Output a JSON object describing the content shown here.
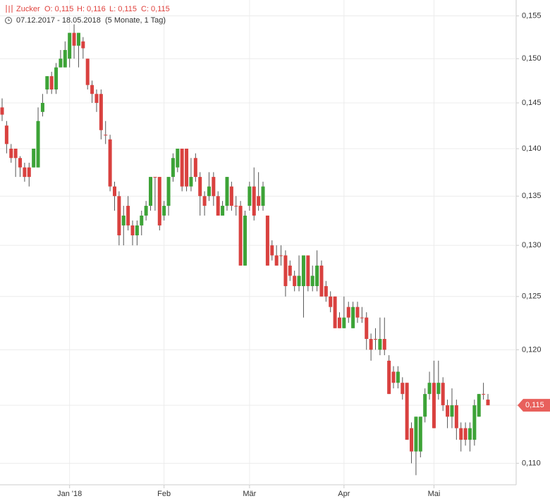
{
  "chart_data": {
    "type": "candlestick",
    "name": "Zucker",
    "ohlc_labels": [
      "O: 0,115",
      "H: 0,116",
      "L: 0,115",
      "C: 0,115"
    ],
    "date_range": "07.12.2017 - 18.05.2018",
    "period": "(5 Monate, 1 Tag)",
    "log_scale": true,
    "grid": true,
    "up_color": "#3da337",
    "down_color": "#d9413f",
    "ylim": [
      0.1082,
      0.1569
    ],
    "yticks": [
      {
        "value": 0.11,
        "label": "0,110"
      },
      {
        "value": 0.115,
        "label": "0,115"
      },
      {
        "value": 0.12,
        "label": "0,120"
      },
      {
        "value": 0.125,
        "label": "0,125"
      },
      {
        "value": 0.13,
        "label": "0,130"
      },
      {
        "value": 0.135,
        "label": "0,135"
      },
      {
        "value": 0.14,
        "label": "0,140"
      },
      {
        "value": 0.145,
        "label": "0,145"
      },
      {
        "value": 0.15,
        "label": "0,150"
      },
      {
        "value": 0.155,
        "label": "0,155"
      }
    ],
    "last_price": {
      "value": 0.115,
      "label": "0,115"
    },
    "categories": [
      null,
      null,
      null,
      null,
      null,
      null,
      null,
      null,
      null,
      null,
      null,
      null,
      null,
      null,
      null,
      "Jan '18",
      null,
      null,
      null,
      null,
      null,
      null,
      null,
      null,
      null,
      null,
      null,
      null,
      null,
      null,
      null,
      null,
      null,
      null,
      null,
      null,
      "Feb",
      null,
      null,
      null,
      null,
      null,
      null,
      null,
      null,
      null,
      null,
      null,
      null,
      null,
      null,
      null,
      null,
      null,
      null,
      "Mär",
      null,
      null,
      null,
      null,
      null,
      null,
      null,
      null,
      null,
      null,
      null,
      null,
      null,
      null,
      null,
      null,
      null,
      null,
      null,
      null,
      "Apr",
      null,
      null,
      null,
      null,
      null,
      null,
      null,
      null,
      null,
      null,
      null,
      null,
      null,
      null,
      null,
      null,
      null,
      null,
      null,
      "Mai",
      null,
      null,
      null,
      null,
      null,
      null,
      null,
      null,
      null,
      null,
      null,
      null
    ],
    "open": [
      0.1445,
      0.1425,
      0.14,
      0.14,
      0.139,
      0.138,
      0.138,
      0.138,
      0.138,
      0.144,
      0.1465,
      0.148,
      0.1465,
      0.149,
      0.149,
      0.15,
      0.153,
      0.1515,
      0.152,
      0.15,
      0.147,
      0.146,
      0.146,
      0.1415,
      0.141,
      0.136,
      0.135,
      0.132,
      0.134,
      0.132,
      0.131,
      0.132,
      0.133,
      0.134,
      0.137,
      0.137,
      0.133,
      0.134,
      0.137,
      0.138,
      0.14,
      0.14,
      0.136,
      0.139,
      0.137,
      0.135,
      0.135,
      0.137,
      0.135,
      0.133,
      0.134,
      0.136,
      0.134,
      0.134,
      0.128,
      0.134,
      0.136,
      0.135,
      0.134,
      0.133,
      0.13,
      0.129,
      0.129,
      0.129,
      0.128,
      0.127,
      0.126,
      0.126,
      0.129,
      0.126,
      0.126,
      0.128,
      0.126,
      0.125,
      0.125,
      0.123,
      0.122,
      0.124,
      0.122,
      0.124,
      0.123,
      0.123,
      0.121,
      0.121,
      0.12,
      0.121,
      0.119,
      0.118,
      0.117,
      0.117,
      0.117,
      0.113,
      0.111,
      0.111,
      0.114,
      0.116,
      0.117,
      0.116,
      0.117,
      0.115,
      0.114,
      0.115,
      0.113,
      0.113,
      0.112,
      0.112,
      0.114,
      0.116,
      0.1155
    ],
    "high": [
      0.1455,
      0.143,
      0.1405,
      0.14,
      0.1392,
      0.1385,
      0.1385,
      0.14,
      0.1445,
      0.146,
      0.148,
      0.1485,
      0.1495,
      0.151,
      0.152,
      0.153,
      0.154,
      0.153,
      0.1525,
      0.15,
      0.1475,
      0.1465,
      0.1465,
      0.143,
      0.1415,
      0.1365,
      0.1355,
      0.134,
      0.135,
      0.1325,
      0.1325,
      0.1335,
      0.1345,
      0.137,
      0.137,
      0.137,
      0.1345,
      0.137,
      0.1395,
      0.14,
      0.14,
      0.14,
      0.139,
      0.1395,
      0.1375,
      0.1355,
      0.1375,
      0.1375,
      0.1355,
      0.1345,
      0.137,
      0.1365,
      0.135,
      0.1345,
      0.1335,
      0.1365,
      0.138,
      0.1375,
      0.1365,
      0.133,
      0.1305,
      0.13,
      0.13,
      0.1295,
      0.1285,
      0.1275,
      0.129,
      0.129,
      0.129,
      0.128,
      0.1295,
      0.1285,
      0.1265,
      0.1255,
      0.125,
      0.1235,
      0.125,
      0.1245,
      0.1245,
      0.1245,
      0.124,
      0.1235,
      0.1215,
      0.122,
      0.123,
      0.123,
      0.1195,
      0.1185,
      0.1185,
      0.1175,
      0.117,
      0.1135,
      0.114,
      0.114,
      0.1165,
      0.118,
      0.119,
      0.119,
      0.1175,
      0.1155,
      0.1165,
      0.1155,
      0.1135,
      0.1135,
      0.1135,
      0.1155,
      0.116,
      0.117,
      0.116
    ],
    "low": [
      0.143,
      0.1395,
      0.1385,
      0.137,
      0.137,
      0.1365,
      0.136,
      0.138,
      0.138,
      0.1435,
      0.146,
      0.146,
      0.146,
      0.149,
      0.149,
      0.149,
      0.15,
      0.149,
      0.15,
      0.1465,
      0.145,
      0.144,
      0.141,
      0.1405,
      0.1355,
      0.1335,
      0.13,
      0.13,
      0.1315,
      0.13,
      0.13,
      0.131,
      0.1325,
      0.1335,
      0.1335,
      0.1315,
      0.1325,
      0.133,
      0.1365,
      0.1375,
      0.1355,
      0.1355,
      0.1355,
      0.1365,
      0.133,
      0.133,
      0.1345,
      0.134,
      0.133,
      0.133,
      0.1335,
      0.1335,
      0.133,
      0.128,
      0.128,
      0.1335,
      0.1325,
      0.1335,
      0.1335,
      0.128,
      0.1285,
      0.128,
      0.128,
      0.125,
      0.1265,
      0.1255,
      0.1255,
      0.123,
      0.1255,
      0.1255,
      0.1255,
      0.125,
      0.1245,
      0.1235,
      0.122,
      0.122,
      0.122,
      0.1225,
      0.122,
      0.1225,
      0.1225,
      0.12,
      0.119,
      0.12,
      0.1195,
      0.1195,
      0.116,
      0.1165,
      0.1165,
      0.1155,
      0.112,
      0.11,
      0.109,
      0.1105,
      0.1135,
      0.1155,
      0.113,
      0.1155,
      0.1145,
      0.113,
      0.113,
      0.112,
      0.111,
      0.1115,
      0.111,
      0.1115,
      0.114,
      0.1155,
      0.115
    ],
    "close": [
      0.1437,
      0.1405,
      0.139,
      0.139,
      0.138,
      0.137,
      0.137,
      0.14,
      0.143,
      0.145,
      0.148,
      0.1465,
      0.149,
      0.15,
      0.151,
      0.153,
      0.1515,
      0.153,
      0.1512,
      0.147,
      0.146,
      0.145,
      0.142,
      0.1415,
      0.136,
      0.135,
      0.131,
      0.133,
      0.132,
      0.131,
      0.132,
      0.133,
      0.134,
      0.137,
      0.137,
      0.132,
      0.134,
      0.137,
      0.139,
      0.14,
      0.136,
      0.136,
      0.137,
      0.137,
      0.135,
      0.134,
      0.136,
      0.135,
      0.133,
      0.134,
      0.137,
      0.134,
      0.134,
      0.128,
      0.133,
      0.136,
      0.133,
      0.134,
      0.136,
      0.128,
      0.129,
      0.128,
      0.129,
      0.126,
      0.127,
      0.126,
      0.127,
      0.129,
      0.126,
      0.127,
      0.128,
      0.125,
      0.125,
      0.124,
      0.122,
      0.122,
      0.123,
      0.123,
      0.124,
      0.123,
      0.123,
      0.121,
      0.12,
      0.121,
      0.121,
      0.12,
      0.116,
      0.117,
      0.118,
      0.116,
      0.112,
      0.111,
      0.114,
      0.114,
      0.116,
      0.117,
      0.113,
      0.117,
      0.115,
      0.114,
      0.115,
      0.113,
      0.112,
      0.112,
      0.113,
      0.115,
      0.116,
      0.116,
      0.115
    ]
  }
}
